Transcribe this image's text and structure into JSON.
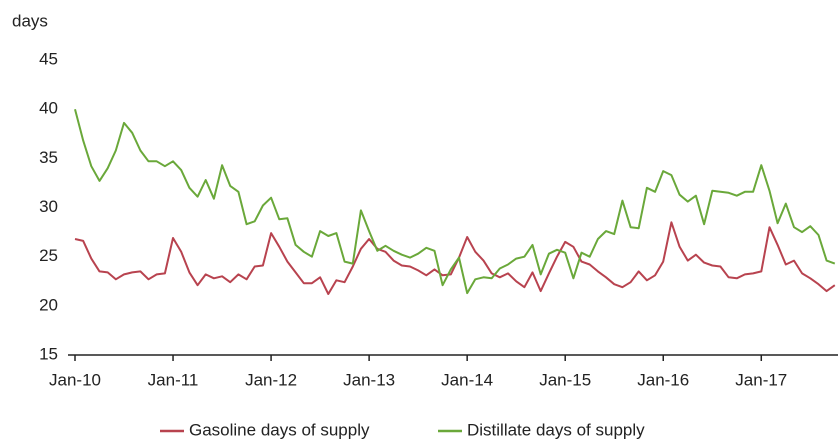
{
  "chart_data": {
    "type": "line",
    "y_label": "days",
    "categories": [
      "Jan-10",
      null,
      null,
      null,
      null,
      null,
      null,
      null,
      null,
      null,
      null,
      null,
      "Jan-11",
      null,
      null,
      null,
      null,
      null,
      null,
      null,
      null,
      null,
      null,
      null,
      "Jan-12",
      null,
      null,
      null,
      null,
      null,
      null,
      null,
      null,
      null,
      null,
      null,
      "Jan-13",
      null,
      null,
      null,
      null,
      null,
      null,
      null,
      null,
      null,
      null,
      null,
      "Jan-14",
      null,
      null,
      null,
      null,
      null,
      null,
      null,
      null,
      null,
      null,
      null,
      "Jan-15",
      null,
      null,
      null,
      null,
      null,
      null,
      null,
      null,
      null,
      null,
      null,
      "Jan-16",
      null,
      null,
      null,
      null,
      null,
      null,
      null,
      null,
      null,
      null,
      null,
      "Jan-17",
      null,
      null,
      null,
      null,
      null,
      null,
      null,
      null,
      null
    ],
    "series": [
      {
        "name": "Gasoline days of supply",
        "color": "#b8434f",
        "values": [
          26.8,
          26.6,
          24.8,
          23.5,
          23.4,
          22.7,
          23.2,
          23.4,
          23.5,
          22.7,
          23.2,
          23.3,
          26.9,
          25.5,
          23.4,
          22.1,
          23.2,
          22.8,
          23.0,
          22.4,
          23.2,
          22.7,
          24.0,
          24.1,
          27.4,
          26.0,
          24.5,
          23.4,
          22.3,
          22.3,
          22.9,
          21.2,
          22.6,
          22.4,
          24.0,
          25.8,
          26.8,
          25.8,
          25.5,
          24.6,
          24.1,
          24.0,
          23.6,
          23.1,
          23.7,
          23.1,
          23.2,
          24.9,
          27.0,
          25.5,
          24.6,
          23.3,
          22.9,
          23.3,
          22.5,
          21.9,
          23.4,
          21.5,
          23.3,
          25.0,
          26.5,
          26.0,
          24.5,
          24.2,
          23.5,
          22.9,
          22.2,
          21.9,
          22.4,
          23.5,
          22.6,
          23.1,
          24.5,
          28.5,
          26.0,
          24.6,
          25.2,
          24.4,
          24.1,
          24.0,
          22.9,
          22.8,
          23.2,
          23.3,
          23.5,
          28.0,
          26.2,
          24.2,
          24.6,
          23.3,
          22.8,
          22.2,
          21.5,
          22.1
        ]
      },
      {
        "name": "Distillate days of supply",
        "color": "#6aa83a",
        "values": [
          40.0,
          36.8,
          34.2,
          32.7,
          34.0,
          35.8,
          38.6,
          37.6,
          35.8,
          34.7,
          34.7,
          34.2,
          34.7,
          33.8,
          32.0,
          31.1,
          32.8,
          30.9,
          34.3,
          32.2,
          31.6,
          28.3,
          28.6,
          30.2,
          31.0,
          28.8,
          28.9,
          26.2,
          25.5,
          25.0,
          27.6,
          27.1,
          27.4,
          24.5,
          24.3,
          29.7,
          27.6,
          25.6,
          26.1,
          25.6,
          25.2,
          24.9,
          25.3,
          25.9,
          25.6,
          22.1,
          23.7,
          24.9,
          21.3,
          22.7,
          22.9,
          22.8,
          23.8,
          24.2,
          24.8,
          25.0,
          26.2,
          23.2,
          25.3,
          25.7,
          25.4,
          22.8,
          25.4,
          25.0,
          26.8,
          27.6,
          27.3,
          30.7,
          28.0,
          27.9,
          32.0,
          31.6,
          33.7,
          33.3,
          31.3,
          30.6,
          31.2,
          28.3,
          31.7,
          31.6,
          31.5,
          31.2,
          31.6,
          31.6,
          34.3,
          31.7,
          28.4,
          30.4,
          28.0,
          27.5,
          28.1,
          27.2,
          24.6,
          24.3
        ]
      }
    ],
    "ylim": [
      15,
      45
    ],
    "yticks": [
      15,
      20,
      25,
      30,
      35,
      40,
      45
    ],
    "grid": false,
    "legend": "bottom"
  }
}
